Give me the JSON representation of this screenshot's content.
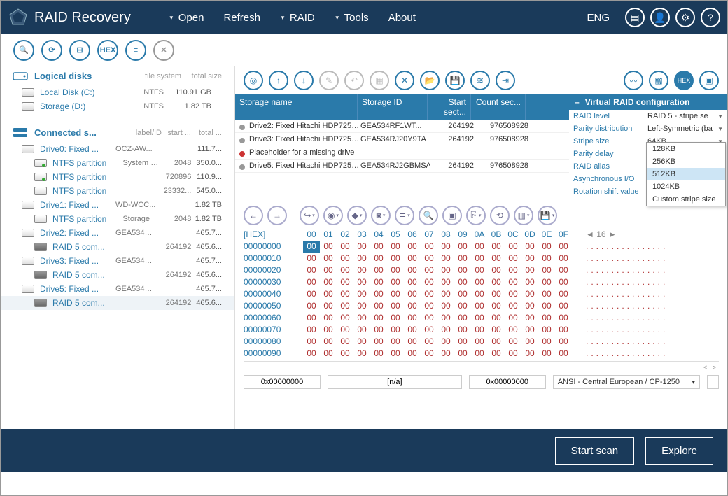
{
  "app": {
    "title": "RAID Recovery",
    "lang": "ENG"
  },
  "menu": [
    {
      "label": "Open",
      "caret": true
    },
    {
      "label": "Refresh",
      "caret": false
    },
    {
      "label": "RAID",
      "caret": true
    },
    {
      "label": "Tools",
      "caret": true
    },
    {
      "label": "About",
      "caret": false
    }
  ],
  "sidebar": {
    "logical_header": "Logical disks",
    "logical_cols": [
      "file system",
      "total size"
    ],
    "logical": [
      {
        "name": "Local Disk (C:)",
        "fs": "NTFS",
        "size": "110.91 GB"
      },
      {
        "name": "Storage (D:)",
        "fs": "NTFS",
        "size": "1.82 TB"
      }
    ],
    "connected_header": "Connected s...",
    "connected_cols": [
      "label/ID",
      "start ...",
      "total ..."
    ],
    "connected": [
      {
        "lvl": 1,
        "icon": "hdd",
        "name": "Drive0: Fixed ...",
        "c1": "OCZ-AW...",
        "c2": "",
        "c3": "111.7..."
      },
      {
        "lvl": 2,
        "icon": "green",
        "name": "NTFS partition",
        "c1": "System R...",
        "c2": "2048",
        "c3": "350.0..."
      },
      {
        "lvl": 2,
        "icon": "green",
        "name": "NTFS partition",
        "c1": "",
        "c2": "720896",
        "c3": "110.9..."
      },
      {
        "lvl": 2,
        "icon": "hdd",
        "name": "NTFS partition",
        "c1": "",
        "c2": "23332...",
        "c3": "545.0..."
      },
      {
        "lvl": 1,
        "icon": "hdd",
        "name": "Drive1: Fixed ...",
        "c1": "WD-WCC...",
        "c2": "",
        "c3": "1.82 TB"
      },
      {
        "lvl": 2,
        "icon": "hdd",
        "name": "NTFS partition",
        "c1": "Storage",
        "c2": "2048",
        "c3": "1.82 TB"
      },
      {
        "lvl": 1,
        "icon": "hdd",
        "name": "Drive2: Fixed ...",
        "c1": "GEA534R...",
        "c2": "",
        "c3": "465.7..."
      },
      {
        "lvl": 2,
        "icon": "raid",
        "name": "RAID 5 com...",
        "c1": "",
        "c2": "264192",
        "c3": "465.6..."
      },
      {
        "lvl": 1,
        "icon": "hdd",
        "name": "Drive3: Fixed ...",
        "c1": "GEA534R...",
        "c2": "",
        "c3": "465.7..."
      },
      {
        "lvl": 2,
        "icon": "raid",
        "name": "RAID 5 com...",
        "c1": "",
        "c2": "264192",
        "c3": "465.6..."
      },
      {
        "lvl": 1,
        "icon": "hdd",
        "name": "Drive5: Fixed ...",
        "c1": "GEA534R...",
        "c2": "",
        "c3": "465.7..."
      },
      {
        "lvl": 2,
        "icon": "raid",
        "name": "RAID 5 com...",
        "c1": "",
        "c2": "264192",
        "c3": "465.6...",
        "selected": true
      }
    ]
  },
  "storage_table": {
    "headers": [
      "Storage name",
      "Storage ID",
      "Start sect...",
      "Count sec..."
    ],
    "rows": [
      {
        "dot": "gray",
        "name": "Drive2: Fixed Hitachi HDP7250...",
        "id": "GEA534RF1WT...",
        "start": "264192",
        "count": "976508928"
      },
      {
        "dot": "gray",
        "name": "Drive3: Fixed Hitachi HDP7250...",
        "id": "GEA534RJ20Y9TA",
        "start": "264192",
        "count": "976508928"
      },
      {
        "dot": "red",
        "name": "Placeholder for a missing drive",
        "id": "",
        "start": "",
        "count": ""
      },
      {
        "dot": "gray",
        "name": "Drive5: Fixed Hitachi HDP7250...",
        "id": "GEA534RJ2GBMSA",
        "start": "264192",
        "count": "976508928"
      }
    ]
  },
  "raid_config": {
    "title": "Virtual RAID configuration",
    "rows": [
      {
        "label": "RAID level",
        "value": "RAID 5 - stripe se",
        "caret": true
      },
      {
        "label": "Parity distribution",
        "value": "Left-Symmetric (ba",
        "caret": true
      },
      {
        "label": "Stripe size",
        "value": "64KB",
        "caret": true
      },
      {
        "label": "Parity delay",
        "value": "",
        "caret": false
      },
      {
        "label": "RAID alias",
        "value": "",
        "caret": false
      },
      {
        "label": "Asynchronous I/O",
        "value": "",
        "caret": false
      },
      {
        "label": "Rotation shift value",
        "value": "",
        "caret": false
      }
    ],
    "dropdown": {
      "options": [
        "128KB",
        "256KB",
        "512KB",
        "1024KB",
        "Custom stripe size"
      ],
      "selected": "512KB"
    }
  },
  "hex": {
    "label": "[HEX]",
    "cols": [
      "00",
      "01",
      "02",
      "03",
      "04",
      "05",
      "06",
      "07",
      "08",
      "09",
      "0A",
      "0B",
      "0C",
      "0D",
      "0E",
      "0F"
    ],
    "page_ind": "◄ 16 ►",
    "rows": [
      {
        "addr": "00000000",
        "sel0": true
      },
      {
        "addr": "00000010"
      },
      {
        "addr": "00000020"
      },
      {
        "addr": "00000030"
      },
      {
        "addr": "00000040"
      },
      {
        "addr": "00000050"
      },
      {
        "addr": "00000060"
      },
      {
        "addr": "00000070"
      },
      {
        "addr": "00000080"
      },
      {
        "addr": "00000090"
      }
    ]
  },
  "status": {
    "addr1": "0x00000000",
    "na": "[n/a]",
    "addr2": "0x00000000",
    "encoding": "ANSI - Central European / CP-1250"
  },
  "actions": {
    "scan": "Start scan",
    "explore": "Explore"
  },
  "colors": {
    "brand": "#1a3a5a",
    "accent": "#2a7aaa",
    "hexred": "#b03030"
  }
}
